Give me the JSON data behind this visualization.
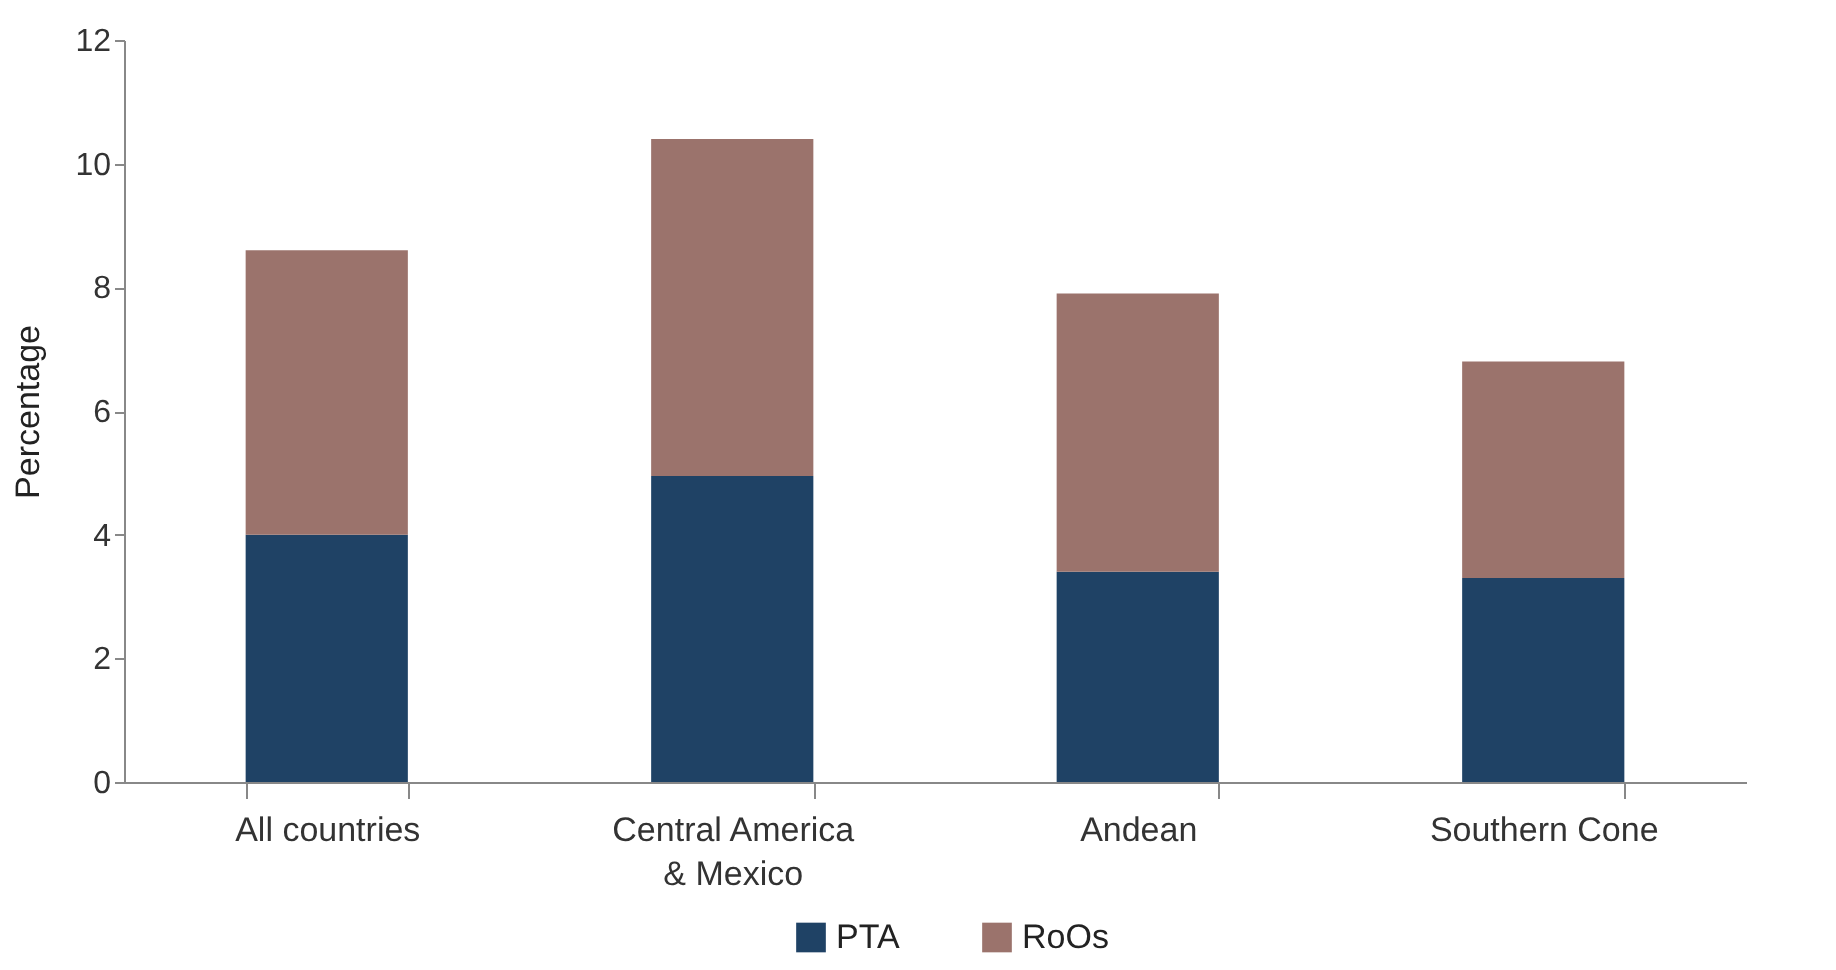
{
  "chart_data": {
    "type": "bar",
    "stacked": true,
    "ylabel": "Percentage",
    "categories": [
      "All countries",
      "Central America & Mexico",
      "Andean",
      "Southern Cone"
    ],
    "series": [
      {
        "name": "PTA",
        "color": "#1f4265",
        "values": [
          4.0,
          4.95,
          3.4,
          3.3
        ]
      },
      {
        "name": "RoOs",
        "color": "#9b736c",
        "values": [
          4.6,
          5.45,
          4.5,
          3.5
        ]
      }
    ],
    "ylim": [
      0,
      12
    ],
    "yticks": [
      0,
      2,
      4,
      6,
      8,
      10,
      12
    ],
    "grid": false,
    "legend": "bottom"
  }
}
